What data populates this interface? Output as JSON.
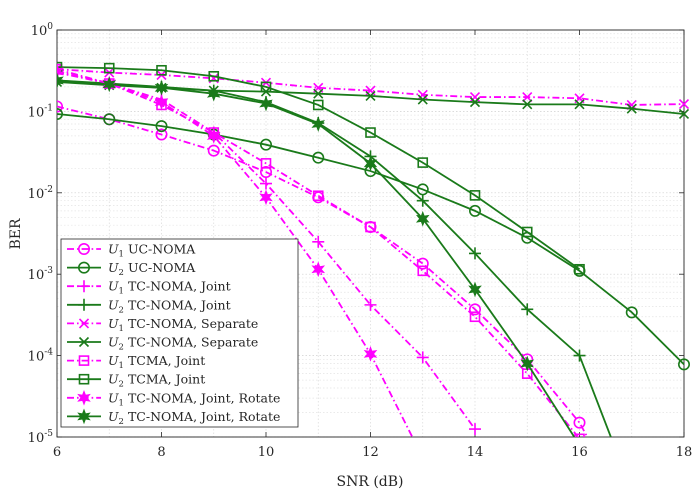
{
  "chart_data": {
    "type": "line",
    "yscale": "log",
    "xlabel": "SNR (dB)",
    "ylabel": "BER",
    "xlim": [
      6,
      18
    ],
    "ylim": [
      1e-05,
      1
    ],
    "xticks": [
      "6",
      "8",
      "10",
      "12",
      "14",
      "16",
      "18"
    ],
    "ytick_base": "10",
    "yticks": [
      "0",
      "-1",
      "-2",
      "-3",
      "-4",
      "-5"
    ],
    "grid": true,
    "legend_position": "bottom-left",
    "colors": {
      "magenta": "#ff00ff",
      "green": "#1a7a1a"
    },
    "series": [
      {
        "user": "U",
        "sub": "1",
        "label": "UC-NOMA",
        "color": "magenta",
        "marker": "circle",
        "dash": "dashdot",
        "x": [
          6,
          7,
          8,
          9,
          10,
          11,
          12,
          13,
          14,
          15,
          16,
          16.15
        ],
        "y": [
          0.115,
          0.08,
          0.052,
          0.033,
          0.018,
          0.0088,
          0.0038,
          0.00135,
          0.00037,
          9e-05,
          1.5e-05,
          1e-05
        ]
      },
      {
        "user": "U",
        "sub": "2",
        "label": "UC-NOMA",
        "color": "green",
        "marker": "circle",
        "dash": "solid",
        "x": [
          6,
          7,
          8,
          9,
          10,
          11,
          12,
          13,
          14,
          15,
          16,
          17,
          18
        ],
        "y": [
          0.093,
          0.08,
          0.066,
          0.052,
          0.039,
          0.027,
          0.0185,
          0.011,
          0.006,
          0.0028,
          0.0011,
          0.00034,
          7.8e-05
        ]
      },
      {
        "user": "U",
        "sub": "1",
        "label": "TC-NOMA, Joint",
        "color": "magenta",
        "marker": "plus",
        "dash": "dashdot",
        "x": [
          6,
          7,
          8,
          9,
          10,
          11,
          12,
          13,
          14
        ],
        "y": [
          0.3,
          0.22,
          0.14,
          0.055,
          0.013,
          0.0025,
          0.00042,
          9.5e-05,
          1.25e-05
        ]
      },
      {
        "user": "U",
        "sub": "2",
        "label": "TC-NOMA, Joint",
        "color": "green",
        "marker": "plus",
        "dash": "solid",
        "x": [
          6,
          7,
          8,
          9,
          10,
          11,
          12,
          13,
          14,
          15,
          16,
          16.6
        ],
        "y": [
          0.24,
          0.22,
          0.2,
          0.18,
          0.13,
          0.072,
          0.028,
          0.008,
          0.0018,
          0.00037,
          0.0001,
          1e-05
        ]
      },
      {
        "user": "U",
        "sub": "1",
        "label": "TC-NOMA, Separate",
        "color": "magenta",
        "marker": "x",
        "dash": "dashdot",
        "x": [
          6,
          7,
          8,
          9,
          10,
          11,
          12,
          13,
          14,
          15,
          16,
          17,
          18
        ],
        "y": [
          0.33,
          0.3,
          0.28,
          0.255,
          0.225,
          0.195,
          0.18,
          0.16,
          0.15,
          0.15,
          0.145,
          0.12,
          0.123
        ]
      },
      {
        "user": "U",
        "sub": "2",
        "label": "TC-NOMA, Separate",
        "color": "green",
        "marker": "x",
        "dash": "solid",
        "x": [
          6,
          7,
          8,
          9,
          10,
          11,
          12,
          13,
          14,
          15,
          16,
          17,
          18
        ],
        "y": [
          0.23,
          0.21,
          0.195,
          0.18,
          0.175,
          0.165,
          0.155,
          0.14,
          0.13,
          0.122,
          0.122,
          0.108,
          0.093
        ]
      },
      {
        "user": "U",
        "sub": "1",
        "label": "TCMA, Joint",
        "color": "magenta",
        "marker": "square",
        "dash": "dashdot",
        "x": [
          6,
          7,
          8,
          9,
          10,
          11,
          12,
          13,
          14,
          15,
          16,
          16.1
        ],
        "y": [
          0.33,
          0.22,
          0.12,
          0.055,
          0.023,
          0.0092,
          0.0038,
          0.0011,
          0.0003,
          6e-05,
          9.5e-06,
          8.5e-06
        ]
      },
      {
        "user": "U",
        "sub": "2",
        "label": "TCMA, Joint",
        "color": "green",
        "marker": "square",
        "dash": "solid",
        "x": [
          6,
          7,
          8,
          9,
          10,
          11,
          12,
          13,
          14,
          15,
          16
        ],
        "y": [
          0.35,
          0.34,
          0.32,
          0.27,
          0.2,
          0.12,
          0.055,
          0.0235,
          0.0093,
          0.0033,
          0.00115
        ]
      },
      {
        "user": "U",
        "sub": "1",
        "label": "TC-NOMA, Joint, Rotate",
        "color": "magenta",
        "marker": "star",
        "dash": "dashdot",
        "x": [
          6,
          7,
          8,
          9,
          10,
          11,
          12,
          12.8
        ],
        "y": [
          0.31,
          0.22,
          0.13,
          0.05,
          0.0088,
          0.00115,
          0.000105,
          1e-05
        ]
      },
      {
        "user": "U",
        "sub": "2",
        "label": "TC-NOMA, Joint, Rotate",
        "color": "green",
        "marker": "star",
        "dash": "solid",
        "x": [
          6,
          7,
          8,
          9,
          10,
          11,
          12,
          13,
          14,
          15,
          15.9
        ],
        "y": [
          0.24,
          0.215,
          0.195,
          0.165,
          0.125,
          0.07,
          0.023,
          0.0048,
          0.00065,
          8e-05,
          1e-05
        ]
      }
    ]
  }
}
